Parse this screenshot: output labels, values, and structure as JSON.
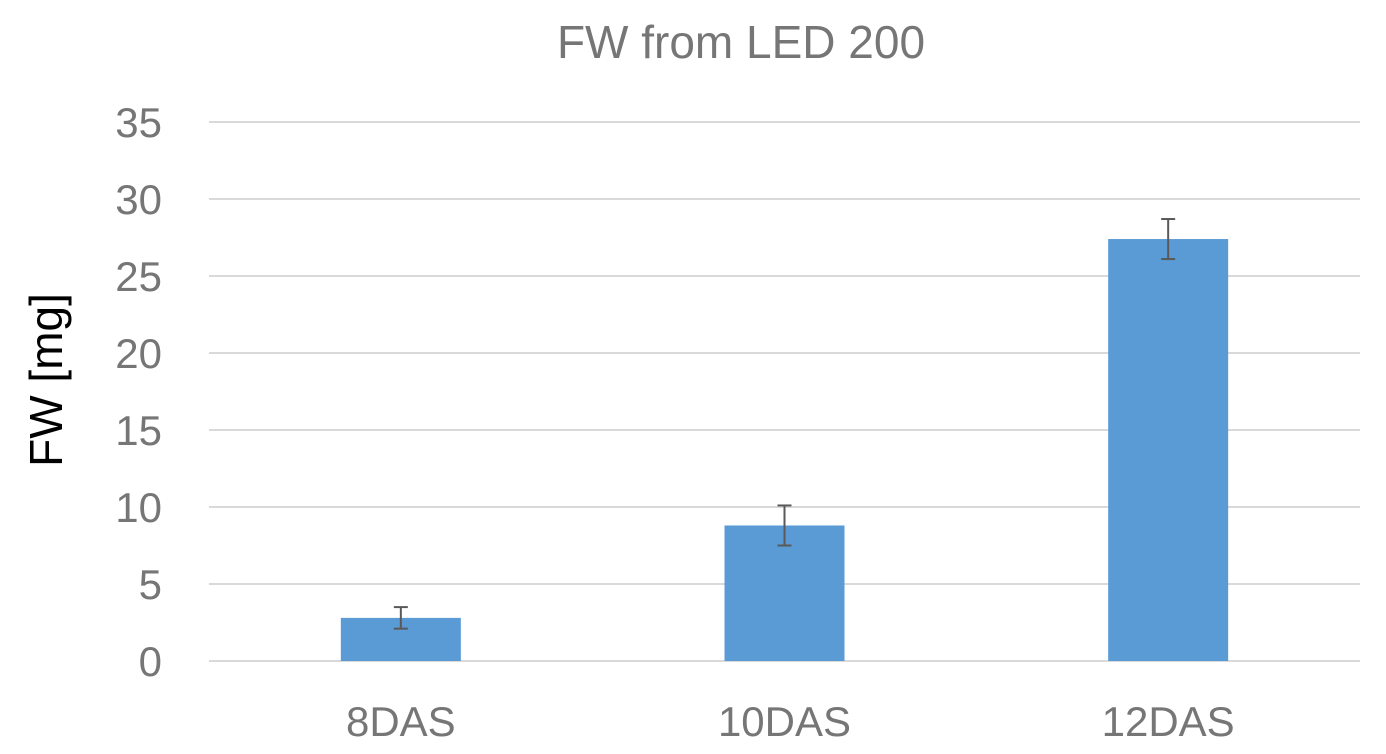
{
  "chart_data": {
    "type": "bar",
    "title": "FW from LED 200",
    "xlabel": "",
    "ylabel": "FW [mg]",
    "categories": [
      "8DAS",
      "10DAS",
      "12DAS"
    ],
    "values": [
      2.8,
      8.8,
      27.4
    ],
    "errors": [
      0.7,
      1.3,
      1.3
    ],
    "ylim": [
      0,
      35
    ],
    "yticks": [
      0,
      5,
      10,
      15,
      20,
      25,
      30,
      35
    ],
    "grid": true,
    "colors": {
      "bar": "#5b9bd5",
      "error_bar": "#595959",
      "grid": "#d9d9d9",
      "tick_text": "#767676",
      "title_text": "#767676",
      "ylabel_text": "#000000"
    }
  }
}
